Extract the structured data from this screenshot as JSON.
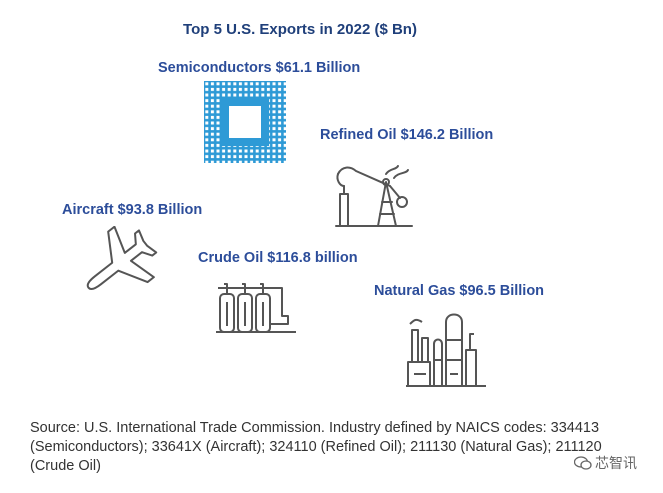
{
  "chart_data": {
    "type": "icon-infographic",
    "title": "Top 5 U.S. Exports in 2022 ($ Bn)",
    "items": [
      {
        "name": "Semiconductors",
        "value": 61.1,
        "label": "Semiconductors $61.1 Billion",
        "icon": "microchip-icon"
      },
      {
        "name": "Refined Oil",
        "value": 146.2,
        "label": "Refined Oil $146.2 Billion",
        "icon": "oil-pump-jack-icon"
      },
      {
        "name": "Aircraft",
        "value": 93.8,
        "label": "Aircraft $93.8 Billion",
        "icon": "airplane-icon"
      },
      {
        "name": "Crude Oil",
        "value": 116.8,
        "label": "Crude Oil $116.8 billion",
        "icon": "storage-tanks-icon"
      },
      {
        "name": "Natural Gas",
        "value": 96.5,
        "label": "Natural Gas $96.5 Billion",
        "icon": "gas-plant-icon"
      }
    ],
    "source": "Source: U.S. International Trade Commission. Industry defined by NAICS codes: 334413 (Semiconductors); 33641X (Aircraft); 324110 (Refined Oil); 211130 (Natural Gas); 211120 (Crude Oil)",
    "watermark": "芯智讯"
  },
  "colors": {
    "label": "#2c4d9a",
    "title": "#1f3f7a",
    "chip": "#2e9ad6",
    "icon_line": "#555555"
  }
}
